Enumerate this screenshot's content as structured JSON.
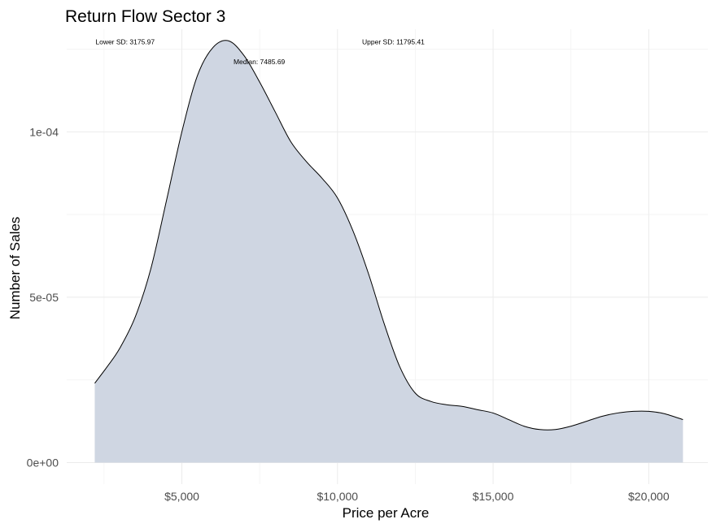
{
  "chart_data": {
    "type": "area",
    "title": "Return Flow Sector 3",
    "xlabel": "Price per Acre",
    "ylabel": "Number of Sales",
    "xlim": [
      1300,
      21900
    ],
    "ylim": [
      -6.5e-06,
      0.000131
    ],
    "x_ticks": [
      5000,
      10000,
      15000,
      20000
    ],
    "x_tick_labels": [
      "$5,000",
      "$10,000",
      "$15,000",
      "$20,000"
    ],
    "y_ticks": [
      0,
      5e-05,
      0.0001
    ],
    "y_tick_labels": [
      "0e+00",
      "5e-05",
      "1e-04"
    ],
    "grid": true,
    "fill_color": "#cfd6e2",
    "line_color": "#000000",
    "x": [
      2200,
      2600,
      3000,
      3500,
      4000,
      4500,
      5000,
      5500,
      6000,
      6500,
      7000,
      7500,
      8000,
      8500,
      9000,
      9500,
      10000,
      10500,
      11000,
      11500,
      12000,
      12500,
      13000,
      13500,
      14000,
      14500,
      15000,
      15500,
      16000,
      16500,
      17000,
      17500,
      18000,
      18500,
      19000,
      19500,
      20000,
      20500,
      21100
    ],
    "y": [
      2.4e-05,
      2.9e-05,
      3.45e-05,
      4.4e-05,
      5.85e-05,
      7.9e-05,
      0.0001,
      0.000117,
      0.0001255,
      0.0001275,
      0.000123,
      0.000115,
      0.000106,
      9.7e-05,
      9.1e-05,
      8.6e-05,
      8e-05,
      7e-05,
      5.7e-05,
      4.2e-05,
      2.9e-05,
      2.1e-05,
      1.85e-05,
      1.75e-05,
      1.7e-05,
      1.6e-05,
      1.5e-05,
      1.3e-05,
      1.1e-05,
      1e-05,
      1e-05,
      1.1e-05,
      1.25e-05,
      1.4e-05,
      1.5e-05,
      1.55e-05,
      1.55e-05,
      1.48e-05,
      1.3e-05
    ],
    "annotations": [
      {
        "text": "Lower SD: 3175.97",
        "x": 3175.97,
        "y": 0.0001265
      },
      {
        "text": "Median: 7485.69",
        "x": 7485.69,
        "y": 0.0001205
      },
      {
        "text": "Upper SD: 11795.41",
        "x": 11795.41,
        "y": 0.0001265
      }
    ]
  }
}
